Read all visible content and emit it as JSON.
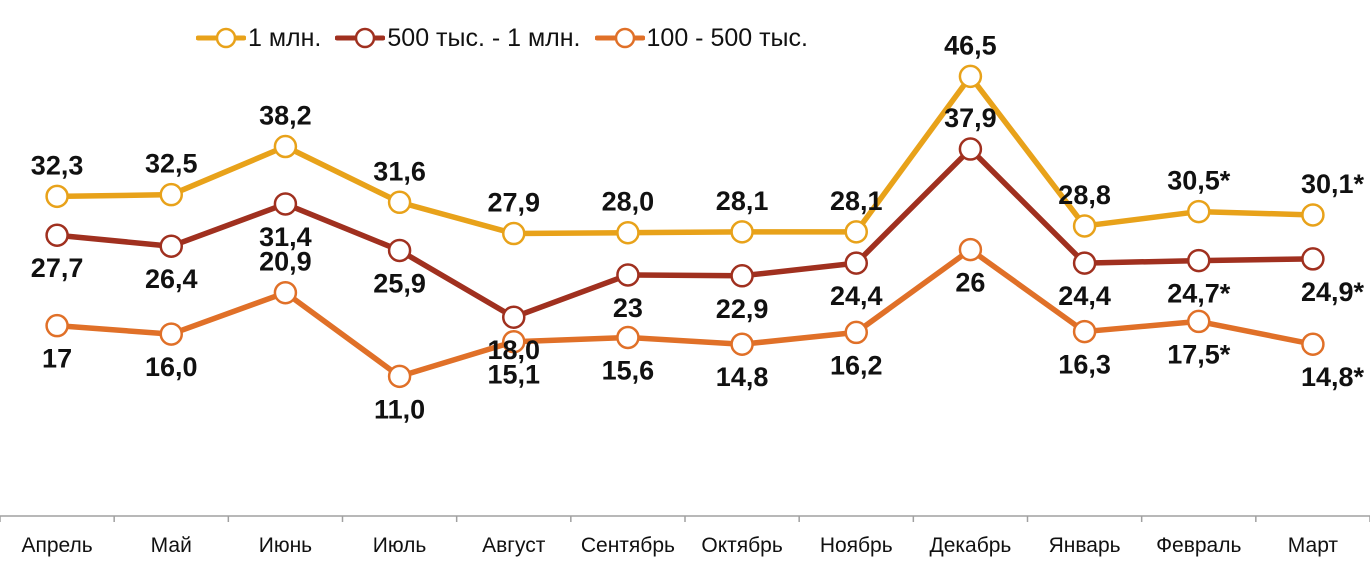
{
  "chart_data": {
    "type": "line",
    "categories": [
      "Апрель",
      "Май",
      "Июнь",
      "Июль",
      "Август",
      "Сентябрь",
      "Октябрь",
      "Ноябрь",
      "Декабрь",
      "Январь",
      "Февраль",
      "Март"
    ],
    "series": [
      {
        "name": "1 млн.",
        "color": "#E8A21A",
        "values": [
          32.3,
          32.5,
          38.2,
          31.6,
          27.9,
          28.0,
          28.1,
          28.1,
          46.5,
          28.8,
          30.5,
          30.1
        ],
        "labels": [
          "32,3",
          "32,5",
          "38,2",
          "31,6",
          "27,9",
          "28,0",
          "28,1",
          "28,1",
          "46,5",
          "28,8",
          "30,5*",
          "30,1*"
        ]
      },
      {
        "name": "500 тыс. - 1 млн.",
        "color": "#A0301F",
        "values": [
          27.7,
          26.4,
          31.4,
          25.9,
          18.0,
          23,
          22.9,
          24.4,
          37.9,
          24.4,
          24.7,
          24.9
        ],
        "labels": [
          "27,7",
          "26,4",
          "31,4",
          "25,9",
          "18,0",
          "23",
          "22,9",
          "24,4",
          "37,9",
          "24,4",
          "24,7*",
          "24,9*"
        ]
      },
      {
        "name": "100 - 500 тыс.",
        "color": "#E07028",
        "values": [
          17,
          16.0,
          20.9,
          11.0,
          15.1,
          15.6,
          14.8,
          16.2,
          26,
          16.3,
          17.5,
          14.8
        ],
        "labels": [
          "17",
          "16,0",
          "20,9",
          "11,0",
          "15,1",
          "15,6",
          "14,8",
          "16,2",
          "26",
          "16,3",
          "17,5*",
          "14,8*"
        ]
      }
    ],
    "legend_position": "top-left",
    "grid": false
  }
}
